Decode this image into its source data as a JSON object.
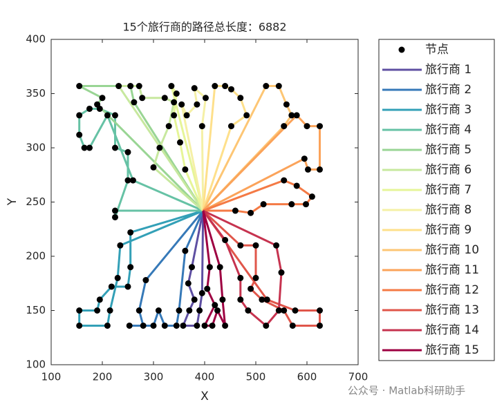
{
  "chart_data": {
    "type": "line",
    "title": "15个旅行商的路径总长度：6882",
    "xlabel": "X",
    "ylabel": "Y",
    "xlim": [
      100,
      700
    ],
    "ylim": [
      100,
      400
    ],
    "xticks": [
      100,
      200,
      300,
      400,
      500,
      600,
      700
    ],
    "yticks": [
      100,
      150,
      200,
      250,
      300,
      350,
      400
    ],
    "legend": "right",
    "nodes": {
      "name": "节点",
      "color": "#000000"
    },
    "watermark": "公众号 · Matlab科研助手",
    "series": [
      {
        "name": "旅行商 1",
        "color": "#5e4fa2",
        "x": [
          397,
          375,
          368,
          380,
          370,
          358,
          385,
          390,
          395,
          397
        ],
        "values": [
          242,
          190,
          175,
          160,
          150,
          136,
          136,
          150,
          166,
          242
        ]
      },
      {
        "name": "旅行商 2",
        "color": "#3679b8",
        "x": [
          397,
          285,
          272,
          280,
          253,
          300,
          310,
          322,
          345,
          350,
          362,
          397
        ],
        "values": [
          242,
          178,
          150,
          136,
          136,
          136,
          150,
          136,
          136,
          150,
          205,
          242
        ]
      },
      {
        "name": "旅行商 3",
        "color": "#33a0b7",
        "x": [
          397,
          255,
          255,
          250,
          218,
          195,
          190,
          155,
          155,
          210,
          215,
          230,
          235,
          397
        ],
        "values": [
          242,
          222,
          190,
          172,
          172,
          160,
          150,
          150,
          136,
          136,
          150,
          180,
          210,
          242
        ]
      },
      {
        "name": "旅行商 4",
        "color": "#66c2a5",
        "x": [
          397,
          225,
          225,
          250,
          250,
          225,
          225,
          195,
          175,
          155,
          155,
          165,
          175,
          210,
          260,
          397
        ],
        "values": [
          242,
          242,
          236,
          270,
          296,
          300,
          330,
          336,
          336,
          330,
          312,
          300,
          300,
          330,
          270,
          242
        ]
      },
      {
        "name": "旅行商 5",
        "color": "#99d594",
        "x": [
          397,
          190,
          200,
          155,
          255,
          262,
          397
        ],
        "values": [
          242,
          340,
          346,
          357,
          357,
          342,
          242
        ]
      },
      {
        "name": "旅行商 6",
        "color": "#c7e89e",
        "x": [
          397,
          232,
          272,
          278,
          322,
          340,
          330,
          312,
          300,
          397
        ],
        "values": [
          242,
          357,
          357,
          346,
          346,
          342,
          320,
          300,
          282,
          242
        ]
      },
      {
        "name": "旅行商 7",
        "color": "#e6f598",
        "x": [
          397,
          335,
          345,
          340,
          352,
          362,
          397
        ],
        "values": [
          242,
          357,
          350,
          330,
          305,
          280,
          242
        ]
      },
      {
        "name": "旅行商 8",
        "color": "#f5f0a6",
        "x": [
          397,
          355,
          365,
          385,
          380,
          402,
          395,
          397
        ],
        "values": [
          242,
          340,
          330,
          340,
          355,
          346,
          320,
          242
        ]
      },
      {
        "name": "旅行商 9",
        "color": "#fee08b",
        "x": [
          397,
          420,
          440,
          452,
          470,
          482,
          452,
          397
        ],
        "values": [
          242,
          357,
          357,
          354,
          346,
          330,
          320,
          242
        ]
      },
      {
        "name": "旅行商 10",
        "color": "#fdc674",
        "x": [
          397,
          520,
          545,
          560,
          570,
          555,
          397
        ],
        "values": [
          242,
          357,
          357,
          340,
          330,
          320,
          242
        ]
      },
      {
        "name": "旅行商 11",
        "color": "#fba35a",
        "x": [
          397,
          580,
          600,
          625,
          625,
          602,
          595,
          397
        ],
        "values": [
          242,
          330,
          320,
          320,
          280,
          280,
          290,
          242
        ]
      },
      {
        "name": "旅行商 12",
        "color": "#f47a45",
        "x": [
          397,
          555,
          580,
          610,
          598,
          570,
          515,
          490,
          460,
          397
        ],
        "values": [
          242,
          270,
          265,
          255,
          248,
          248,
          248,
          240,
          242,
          242
        ]
      },
      {
        "name": "旅行商 13",
        "color": "#e0564a",
        "x": [
          397,
          470,
          500,
          500,
          490,
          512,
          555,
          572,
          625,
          625,
          577,
          522,
          397
        ],
        "values": [
          242,
          210,
          210,
          180,
          170,
          160,
          150,
          136,
          136,
          150,
          150,
          160,
          242
        ]
      },
      {
        "name": "旅行商 14",
        "color": "#c6334f",
        "x": [
          397,
          440,
          470,
          470,
          485,
          520,
          545,
          550,
          540,
          397
        ],
        "values": [
          242,
          215,
          180,
          160,
          150,
          136,
          150,
          185,
          210,
          242
        ]
      },
      {
        "name": "旅行商 15",
        "color": "#9e0142",
        "x": [
          397,
          410,
          405,
          420,
          400,
          415,
          425,
          440,
          435,
          430,
          397
        ],
        "values": [
          242,
          190,
          170,
          155,
          136,
          136,
          150,
          136,
          160,
          190,
          242
        ]
      }
    ]
  }
}
